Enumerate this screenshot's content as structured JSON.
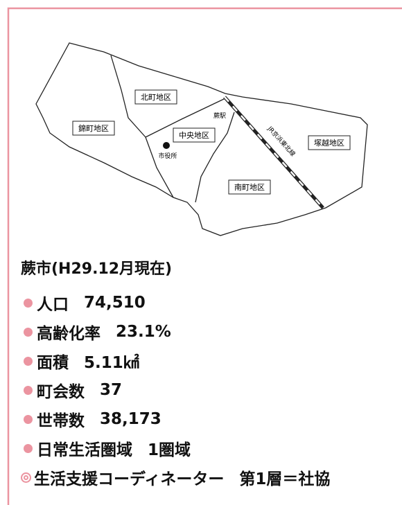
{
  "map": {
    "districts": [
      "北町地区",
      "錦町地区",
      "中央地区",
      "南町地区",
      "塚越地区"
    ],
    "city_hall": "市役所",
    "station": "蕨駅",
    "railway": "JR京浜東北線"
  },
  "info": {
    "title": "蕨市(H29.12月現在)",
    "items": [
      {
        "label": "人口",
        "value": "74,510"
      },
      {
        "label": "高齢化率",
        "value": "23.1%"
      },
      {
        "label": "面積",
        "value": "5.11㎢"
      },
      {
        "label": "町会数",
        "value": "37"
      },
      {
        "label": "世帯数",
        "value": "38,173"
      },
      {
        "label": "日常生活圏域",
        "value": "1圏域"
      }
    ],
    "note": {
      "label": "生活支援コーディネーター",
      "value": "第1層＝社協"
    }
  }
}
